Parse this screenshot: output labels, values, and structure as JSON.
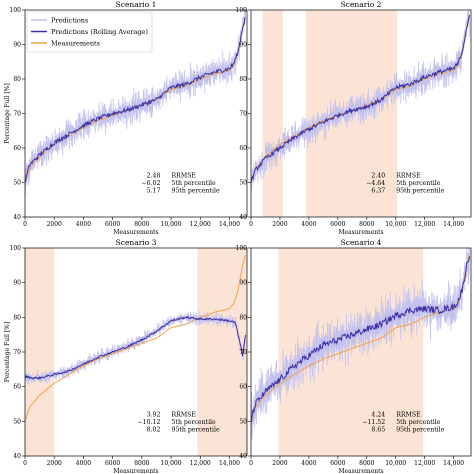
{
  "legend": [
    {
      "label": "Predictions",
      "color": "#c3c3ee"
    },
    {
      "label": "Predictions (Rolling Average)",
      "color": "#3c2fa3"
    },
    {
      "label": "Measurements",
      "color": "#f5a347"
    }
  ],
  "chart_data": [
    {
      "type": "line",
      "title": "Scenario 1",
      "xlabel": "Measurements",
      "ylabel": "Percentage Full [%]",
      "xlim": [
        0,
        15200
      ],
      "ylim": [
        40,
        100
      ],
      "xticks": [
        "0",
        "2000",
        "4000",
        "6000",
        "8000",
        "10,000",
        "12,000",
        "14,000"
      ],
      "yticks": [
        "40",
        "50",
        "60",
        "70",
        "80",
        "90",
        "100"
      ],
      "shaded_regions": [],
      "measurements": {
        "x": [
          0,
          300,
          1000,
          2000,
          3000,
          4000,
          5000,
          6000,
          7000,
          8000,
          9000,
          10000,
          11000,
          12000,
          13000,
          14000,
          14300,
          14600,
          14900,
          15100
        ],
        "y": [
          50,
          54,
          57.5,
          61,
          63.5,
          66,
          68,
          69.5,
          71,
          72.5,
          74,
          77,
          78,
          80,
          81.5,
          82.5,
          84,
          88,
          95,
          98
        ]
      },
      "rolling_average": {
        "x": [
          0,
          300,
          1000,
          2000,
          3000,
          4000,
          5000,
          6000,
          7000,
          8000,
          9000,
          10000,
          11000,
          12000,
          13000,
          14000,
          14300,
          14600,
          14900,
          15100
        ],
        "y": [
          50,
          55,
          58,
          61.5,
          64,
          66.5,
          68.5,
          70,
          71,
          72.5,
          74,
          77.5,
          78.5,
          80.5,
          82,
          83,
          84.5,
          88,
          95,
          98
        ]
      },
      "prediction_spread": 3.5,
      "stats": [
        {
          "value": "2.48",
          "label": "RRMSE"
        },
        {
          "value": "−6.02",
          "label": "5th percentile"
        },
        {
          "value": "5.17",
          "label": "95th percentile"
        }
      ]
    },
    {
      "type": "line",
      "title": "Scenario 2",
      "xlabel": "Measurements",
      "ylabel": "",
      "xlim": [
        0,
        15200
      ],
      "ylim": [
        40,
        100
      ],
      "xticks": [
        "0",
        "2000",
        "4000",
        "6000",
        "8000",
        "10,000",
        "12,000",
        "14,000"
      ],
      "yticks": [
        "40",
        "50",
        "60",
        "70",
        "80",
        "90",
        "100"
      ],
      "shaded_regions": [
        [
          800,
          2200
        ],
        [
          3800,
          10100
        ]
      ],
      "measurements": {
        "x": [
          0,
          300,
          1000,
          2000,
          3000,
          4000,
          5000,
          6000,
          7000,
          8000,
          9000,
          10000,
          11000,
          12000,
          13000,
          14000,
          14300,
          14600,
          14900,
          15100
        ],
        "y": [
          50,
          54,
          57.5,
          61,
          63.5,
          66,
          68,
          69.5,
          71,
          72.5,
          74,
          77,
          78,
          80,
          81.5,
          82.5,
          84,
          88,
          95,
          98
        ]
      },
      "rolling_average": {
        "x": [
          0,
          300,
          1000,
          2000,
          3000,
          4000,
          5000,
          6000,
          7000,
          8000,
          9000,
          10000,
          11000,
          12000,
          13000,
          14000,
          14300,
          14600,
          14900,
          15100
        ],
        "y": [
          50,
          53.5,
          57,
          60,
          63,
          65.5,
          67.5,
          69.5,
          71,
          72,
          74,
          77.5,
          78.5,
          80.5,
          82,
          83,
          84.5,
          88,
          95,
          98
        ]
      },
      "prediction_spread": 3.5,
      "stats": [
        {
          "value": "2.40",
          "label": "RRMSE"
        },
        {
          "value": "−4.64",
          "label": "5th percentile"
        },
        {
          "value": "6.37",
          "label": "95th percentile"
        }
      ]
    },
    {
      "type": "line",
      "title": "Scenario 3",
      "xlabel": "Measurements",
      "ylabel": "Percentage Full [%]",
      "xlim": [
        0,
        15200
      ],
      "ylim": [
        40,
        100
      ],
      "xticks": [
        "0",
        "2000",
        "4000",
        "6000",
        "8000",
        "10,000",
        "12,000",
        "14,000"
      ],
      "yticks": [
        "40",
        "50",
        "60",
        "70",
        "80",
        "90",
        "100"
      ],
      "shaded_regions": [
        [
          0,
          2000
        ],
        [
          11800,
          15200
        ]
      ],
      "measurements": {
        "x": [
          0,
          300,
          1000,
          2000,
          3000,
          4000,
          5000,
          6000,
          7000,
          8000,
          9000,
          10000,
          11000,
          12000,
          13000,
          14000,
          14300,
          14600,
          14900,
          15100
        ],
        "y": [
          50,
          54,
          57.5,
          61,
          63.5,
          66,
          68,
          69.5,
          71,
          72.5,
          74,
          77,
          78,
          80,
          81.5,
          82.5,
          84,
          88,
          95,
          98
        ]
      },
      "rolling_average": {
        "x": [
          0,
          500,
          1000,
          1500,
          2000,
          3000,
          4000,
          5000,
          6000,
          7000,
          8000,
          9000,
          10000,
          11000,
          12000,
          13000,
          14000,
          14400,
          14700,
          14900,
          15100
        ],
        "y": [
          63,
          62.5,
          62.5,
          63,
          63.5,
          64.5,
          66.5,
          68.5,
          70,
          71.5,
          73.5,
          76,
          79,
          80,
          79.5,
          79.5,
          79,
          78.5,
          73,
          69,
          75
        ]
      },
      "prediction_spread": 1.5,
      "stats": [
        {
          "value": "3.92",
          "label": "RRMSE"
        },
        {
          "value": "−10.12",
          "label": "5th percentile"
        },
        {
          "value": "8.02",
          "label": "95th percentile"
        }
      ]
    },
    {
      "type": "line",
      "title": "Scenario 4",
      "xlabel": "Measurements",
      "ylabel": "",
      "xlim": [
        0,
        15200
      ],
      "ylim": [
        40,
        100
      ],
      "xticks": [
        "0",
        "2000",
        "4000",
        "6000",
        "8000",
        "10,000",
        "12,000",
        "14,000"
      ],
      "yticks": [
        "40",
        "50",
        "60",
        "70",
        "80",
        "90",
        "100"
      ],
      "shaded_regions": [
        [
          1900,
          11900
        ]
      ],
      "measurements": {
        "x": [
          0,
          300,
          1000,
          2000,
          3000,
          4000,
          5000,
          6000,
          7000,
          8000,
          9000,
          10000,
          11000,
          12000,
          13000,
          14000,
          14300,
          14600,
          14900,
          15100
        ],
        "y": [
          50,
          54,
          57.5,
          61,
          63.5,
          66,
          68,
          69.5,
          71,
          72.5,
          74,
          77,
          78,
          80,
          81.5,
          82.5,
          84,
          88,
          95,
          98
        ]
      },
      "rolling_average": {
        "x": [
          0,
          300,
          1000,
          2000,
          3000,
          4000,
          5000,
          6000,
          7000,
          8000,
          9000,
          10000,
          11000,
          12000,
          13000,
          14000,
          14300,
          14600,
          14900,
          15100
        ],
        "y": [
          50,
          55,
          58.5,
          62,
          66,
          69,
          72,
          73.5,
          75,
          76.5,
          78,
          80.5,
          82,
          82.5,
          82,
          83,
          84.5,
          88,
          95,
          98
        ]
      },
      "prediction_spread": 5.5,
      "stats": [
        {
          "value": "4.24",
          "label": "RRMSE"
        },
        {
          "value": "−11.52",
          "label": "5th percentile"
        },
        {
          "value": "8.65",
          "label": "95th percentile"
        }
      ]
    }
  ]
}
